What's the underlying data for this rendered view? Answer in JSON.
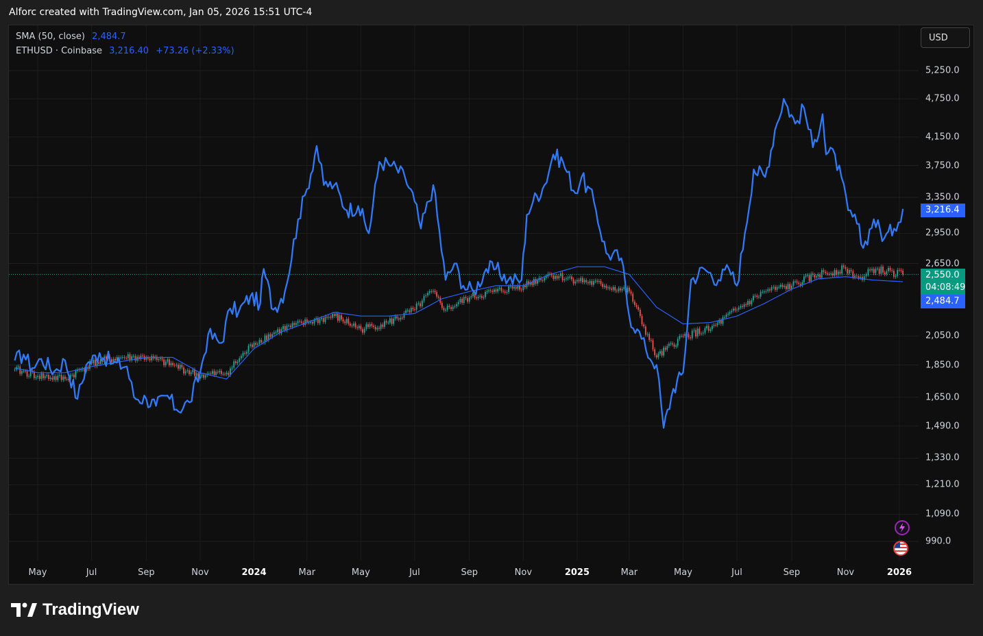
{
  "header": {
    "attribution": "Alforc created with TradingView.com, Jan 05, 2026 15:51 UTC-4"
  },
  "legend": {
    "sma_name": "SMA (50, close)",
    "sma_value": "2,484.7",
    "symbol_name": "ETHUSD · Coinbase",
    "symbol_price": "3,216.40",
    "symbol_change": "+73.26 (+2.33%)"
  },
  "currency_button": "USD",
  "price_tags": {
    "eth_last": "3,216.4",
    "candle_last": "2,550.0",
    "countdown": "04:08:49",
    "sma_last": "2,484.7"
  },
  "brand": {
    "name": "TradingView"
  },
  "icons": [
    "lightning-icon",
    "us-flag-icon",
    "tradingview-logo-icon"
  ],
  "colors": {
    "eth_line": "#3179f5",
    "sma_line": "#2962ff",
    "candle_up": "#26a69a",
    "candle_down": "#ef5350",
    "background": "#0f0f0f",
    "tag_green": "#089981"
  },
  "chart_data": {
    "type": "line",
    "scale": "log",
    "x_ticks": [
      {
        "label": "May",
        "date": "2023-05-01",
        "bold": false
      },
      {
        "label": "Jul",
        "date": "2023-07-01",
        "bold": false
      },
      {
        "label": "Sep",
        "date": "2023-09-01",
        "bold": false
      },
      {
        "label": "Nov",
        "date": "2023-11-01",
        "bold": false
      },
      {
        "label": "2024",
        "date": "2024-01-01",
        "bold": true
      },
      {
        "label": "Mar",
        "date": "2024-03-01",
        "bold": false
      },
      {
        "label": "May",
        "date": "2024-05-01",
        "bold": false
      },
      {
        "label": "Jul",
        "date": "2024-07-01",
        "bold": false
      },
      {
        "label": "Sep",
        "date": "2024-09-01",
        "bold": false
      },
      {
        "label": "Nov",
        "date": "2024-11-01",
        "bold": false
      },
      {
        "label": "2025",
        "date": "2025-01-01",
        "bold": true
      },
      {
        "label": "Mar",
        "date": "2025-03-01",
        "bold": false
      },
      {
        "label": "May",
        "date": "2025-05-01",
        "bold": false
      },
      {
        "label": "Jul",
        "date": "2025-07-01",
        "bold": false
      },
      {
        "label": "Sep",
        "date": "2025-09-01",
        "bold": false
      },
      {
        "label": "Nov",
        "date": "2025-11-01",
        "bold": false
      },
      {
        "label": "2026",
        "date": "2026-01-01",
        "bold": true
      }
    ],
    "y_ticks": [
      {
        "label": "5,250.0",
        "value": 5250
      },
      {
        "label": "4,750.0",
        "value": 4750
      },
      {
        "label": "4,150.0",
        "value": 4150
      },
      {
        "label": "3,750.0",
        "value": 3750
      },
      {
        "label": "3,350.0",
        "value": 3350
      },
      {
        "label": "2,950.0",
        "value": 2950
      },
      {
        "label": "2,650.0",
        "value": 2650
      },
      {
        "label": "2,050.0",
        "value": 2050
      },
      {
        "label": "1,850.0",
        "value": 1850
      },
      {
        "label": "1,650.0",
        "value": 1650
      },
      {
        "label": "1,490.0",
        "value": 1490
      },
      {
        "label": "1,330.0",
        "value": 1330
      },
      {
        "label": "1,210.0",
        "value": 1210
      },
      {
        "label": "1,090.0",
        "value": 1090
      },
      {
        "label": "990.0",
        "value": 990
      }
    ],
    "series": [
      {
        "name": "ETHUSD · Coinbase",
        "x": [
          "2023-04-05",
          "2023-04-15",
          "2023-04-25",
          "2023-05-05",
          "2023-05-20",
          "2023-06-01",
          "2023-06-15",
          "2023-06-25",
          "2023-07-10",
          "2023-07-25",
          "2023-08-10",
          "2023-08-18",
          "2023-09-01",
          "2023-09-12",
          "2023-09-25",
          "2023-10-05",
          "2023-10-20",
          "2023-11-01",
          "2023-11-10",
          "2023-11-25",
          "2023-12-05",
          "2023-12-15",
          "2023-12-28",
          "2024-01-08",
          "2024-01-12",
          "2024-01-23",
          "2024-02-05",
          "2024-02-20",
          "2024-03-01",
          "2024-03-12",
          "2024-03-20",
          "2024-04-01",
          "2024-04-15",
          "2024-04-28",
          "2024-05-10",
          "2024-05-22",
          "2024-06-05",
          "2024-06-20",
          "2024-07-01",
          "2024-07-08",
          "2024-07-22",
          "2024-08-05",
          "2024-08-15",
          "2024-08-25",
          "2024-09-06",
          "2024-09-20",
          "2024-10-01",
          "2024-10-15",
          "2024-10-30",
          "2024-11-05",
          "2024-11-12",
          "2024-11-25",
          "2024-12-05",
          "2024-12-16",
          "2024-12-30",
          "2025-01-06",
          "2025-01-20",
          "2025-02-03",
          "2025-02-20",
          "2025-03-01",
          "2025-03-10",
          "2025-03-20",
          "2025-04-01",
          "2025-04-09",
          "2025-04-20",
          "2025-05-01",
          "2025-05-10",
          "2025-05-25",
          "2025-06-10",
          "2025-06-22",
          "2025-07-01",
          "2025-07-10",
          "2025-07-20",
          "2025-08-02",
          "2025-08-13",
          "2025-08-23",
          "2025-09-05",
          "2025-09-15",
          "2025-09-25",
          "2025-10-06",
          "2025-10-10",
          "2025-10-20",
          "2025-11-04",
          "2025-11-14",
          "2025-11-21",
          "2025-12-03",
          "2025-12-15",
          "2025-12-26",
          "2026-01-05"
        ],
        "y": [
          1880,
          1920,
          1830,
          1890,
          1810,
          1880,
          1640,
          1850,
          1930,
          1860,
          1840,
          1650,
          1640,
          1600,
          1660,
          1580,
          1620,
          1800,
          2060,
          2000,
          2260,
          2240,
          2360,
          2300,
          2600,
          2250,
          2400,
          3100,
          3450,
          4020,
          3500,
          3500,
          3200,
          3250,
          2950,
          3800,
          3750,
          3600,
          3300,
          3000,
          3500,
          2500,
          2650,
          2450,
          2400,
          2600,
          2600,
          2500,
          2500,
          3150,
          3300,
          3500,
          3900,
          3800,
          3400,
          3600,
          3300,
          2750,
          2700,
          2200,
          2100,
          1950,
          1850,
          1480,
          1700,
          1800,
          2500,
          2600,
          2500,
          2600,
          2450,
          2950,
          3700,
          3600,
          4250,
          4750,
          4350,
          4600,
          4000,
          4500,
          3900,
          3900,
          3200,
          3050,
          2800,
          3100,
          2900,
          3000,
          3216.4
        ]
      },
      {
        "name": "SMA (50, close)",
        "x": [
          "2023-04-05",
          "2023-05-01",
          "2023-06-01",
          "2023-07-01",
          "2023-08-01",
          "2023-09-01",
          "2023-10-01",
          "2023-11-01",
          "2023-12-01",
          "2024-01-01",
          "2024-02-01",
          "2024-03-01",
          "2024-04-01",
          "2024-05-01",
          "2024-06-01",
          "2024-07-01",
          "2024-08-01",
          "2024-09-01",
          "2024-10-01",
          "2024-11-01",
          "2024-12-01",
          "2025-01-01",
          "2025-02-01",
          "2025-03-01",
          "2025-04-01",
          "2025-05-01",
          "2025-06-01",
          "2025-07-01",
          "2025-08-01",
          "2025-09-01",
          "2025-10-01",
          "2025-11-01",
          "2025-12-01",
          "2026-01-05"
        ],
        "y": [
          1830,
          1800,
          1800,
          1840,
          1870,
          1900,
          1900,
          1800,
          1760,
          1960,
          2080,
          2150,
          2230,
          2200,
          2200,
          2220,
          2340,
          2400,
          2450,
          2450,
          2550,
          2620,
          2620,
          2550,
          2270,
          2140,
          2150,
          2200,
          2300,
          2420,
          2510,
          2530,
          2500,
          2484.7
        ]
      },
      {
        "name": "ETHUSD candles",
        "x": [
          "2023-04-05",
          "2023-05-01",
          "2023-06-01",
          "2023-07-01",
          "2023-08-01",
          "2023-09-01",
          "2023-10-01",
          "2023-11-01",
          "2023-12-01",
          "2024-01-01",
          "2024-02-01",
          "2024-03-01",
          "2024-04-01",
          "2024-05-01",
          "2024-06-01",
          "2024-07-01",
          "2024-07-20",
          "2024-08-05",
          "2024-09-01",
          "2024-10-01",
          "2024-11-01",
          "2024-12-01",
          "2025-01-01",
          "2025-02-01",
          "2025-03-01",
          "2025-04-01",
          "2025-05-01",
          "2025-06-01",
          "2025-07-01",
          "2025-08-01",
          "2025-09-01",
          "2025-10-01",
          "2025-11-01",
          "2025-11-20",
          "2025-12-01",
          "2026-01-05"
        ],
        "y": [
          1820,
          1780,
          1760,
          1860,
          1900,
          1900,
          1850,
          1780,
          1800,
          2000,
          2100,
          2150,
          2200,
          2100,
          2150,
          2250,
          2400,
          2250,
          2350,
          2400,
          2450,
          2550,
          2500,
          2450,
          2400,
          1900,
          2050,
          2100,
          2250,
          2400,
          2450,
          2550,
          2600,
          2500,
          2600,
          2550
        ]
      }
    ]
  }
}
